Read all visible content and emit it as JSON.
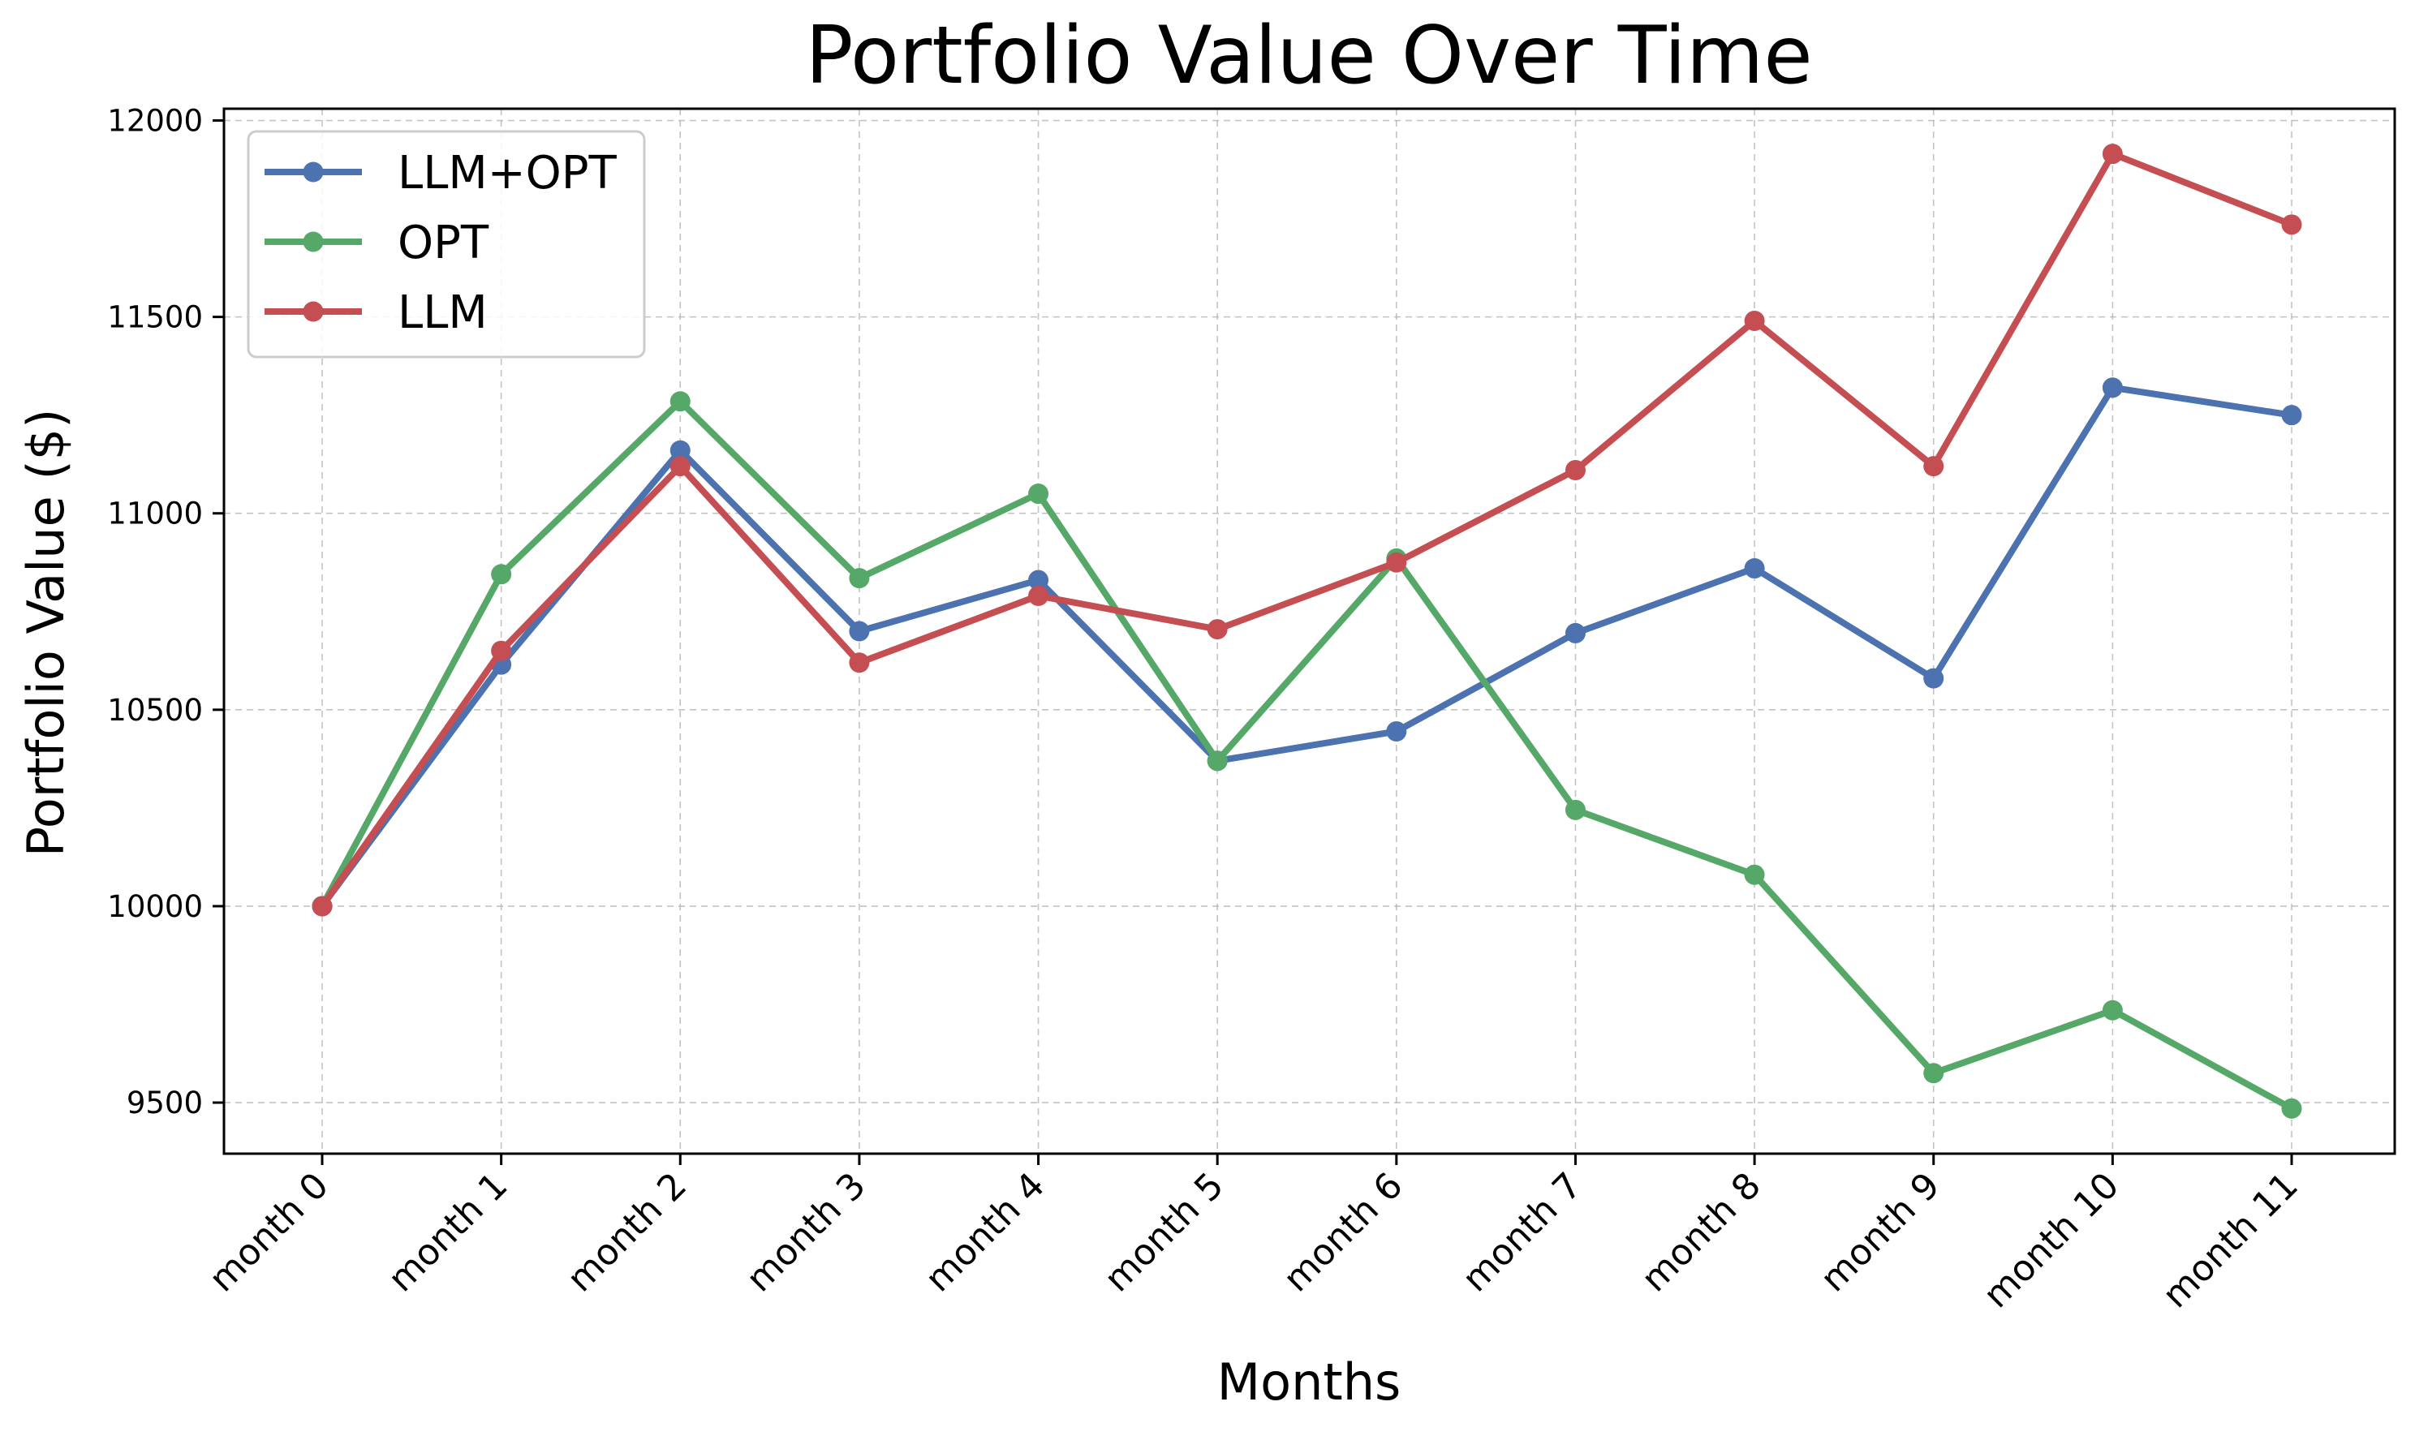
{
  "chart_data": {
    "type": "line",
    "title": "Portfolio Value Over Time",
    "xlabel": "Months",
    "ylabel": "Portfolio Value ($)",
    "categories": [
      "month 0",
      "month 1",
      "month 2",
      "month 3",
      "month 4",
      "month 5",
      "month 6",
      "month 7",
      "month 8",
      "month 9",
      "month 10",
      "month 11"
    ],
    "ylim": [
      9370,
      12030
    ],
    "yticks": [
      9500,
      10000,
      10500,
      11000,
      11500,
      12000
    ],
    "grid": true,
    "legend_position": "top-left",
    "series": [
      {
        "name": "LLM+OPT",
        "color": "#4c72b0",
        "values": [
          10000,
          10615,
          11160,
          10700,
          10830,
          10370,
          10445,
          10695,
          10860,
          10580,
          11320,
          11250
        ]
      },
      {
        "name": "OPT",
        "color": "#55a868",
        "values": [
          10000,
          10845,
          11285,
          10835,
          11050,
          10370,
          10885,
          10245,
          10080,
          9575,
          9735,
          9485
        ]
      },
      {
        "name": "LLM",
        "color": "#c44e52",
        "values": [
          10000,
          10650,
          11120,
          10620,
          10790,
          10705,
          10875,
          11110,
          11490,
          11120,
          11915,
          11735
        ]
      }
    ]
  }
}
